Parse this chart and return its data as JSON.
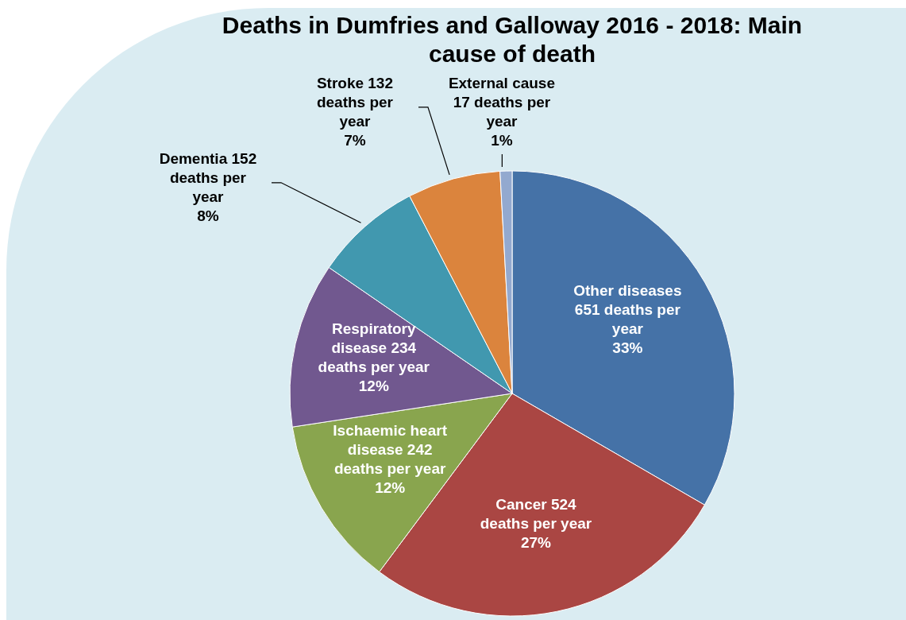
{
  "chart_data": {
    "type": "pie",
    "title": "Deaths in Dumfries and Galloway 2016 - 2018: Main cause of death",
    "categories": [
      "Other diseases",
      "Cancer",
      "Ischaemic heart disease",
      "Respiratory disease",
      "Dementia",
      "Stroke",
      "External cause"
    ],
    "values": [
      651,
      524,
      242,
      234,
      152,
      132,
      17
    ],
    "value_labels": [
      "651 deaths per year 33%",
      "524 deaths per year 27%",
      "242 deaths per year 12%",
      "234 deaths per year 12%",
      "152 deaths per year 8%",
      "132 deaths per year 7%",
      "17 deaths per year 1%"
    ],
    "colors": [
      "#4572a7",
      "#aa4643",
      "#89a54e",
      "#71588f",
      "#4198af",
      "#db843d",
      "#93a9cf"
    ],
    "legend": false
  }
}
